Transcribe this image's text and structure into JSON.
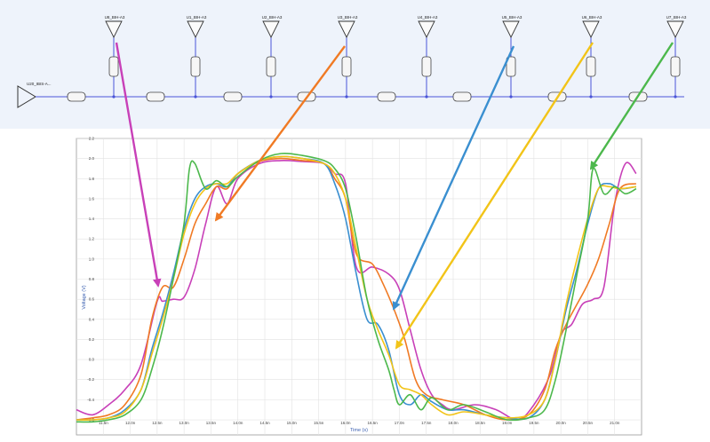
{
  "schematic": {
    "driver_label": "U20_IBIS-A...",
    "receivers": [
      {
        "label": "U8_BIH-A3"
      },
      {
        "label": "U1_BIH-A3"
      },
      {
        "label": "U2_BIH-A3"
      },
      {
        "label": "U3_BIH-A3"
      },
      {
        "label": "U4_BIH-A3"
      },
      {
        "label": "U5_BIH-A3"
      },
      {
        "label": "U6_BIH-A3"
      },
      {
        "label": "U7_BIH-A3"
      }
    ]
  },
  "colors": {
    "magenta": "#c840b8",
    "orange": "#f07a24",
    "blue": "#3a8fd0",
    "yellow": "#f2c418",
    "green": "#4cb84c",
    "schematic_bg": "#eef3fb",
    "wire": "#4a54d8"
  },
  "chart_data": {
    "type": "line",
    "title": "",
    "xlabel": "Time (s)",
    "ylabel": "Voltage (V)",
    "xlim": [
      11.0,
      21.5
    ],
    "ylim": [
      -0.75,
      2.2
    ],
    "grid": true,
    "x_ticks": [
      "11.5n",
      "12.0n",
      "12.5n",
      "13.0n",
      "13.5n",
      "14.0n",
      "14.5n",
      "15.0n",
      "15.5n",
      "16.0n",
      "16.5n",
      "17.0n",
      "17.5n",
      "18.0n",
      "18.5n",
      "19.0n",
      "19.5n",
      "20.0n",
      "20.5n",
      "21.0n"
    ],
    "y_ticks": [
      "-0.6",
      "-0.4",
      "-0.2",
      "0.0",
      "0.2",
      "0.4",
      "0.6",
      "0.8",
      "1.0",
      "1.2",
      "1.4",
      "1.6",
      "1.8",
      "2.0",
      "2.2"
    ],
    "series": [
      {
        "color": "magenta",
        "x": [
          11.0,
          11.3,
          11.6,
          11.9,
          12.2,
          12.5,
          12.6,
          12.8,
          13.0,
          13.2,
          13.4,
          13.6,
          13.8,
          14.0,
          14.4,
          14.8,
          15.2,
          15.6,
          15.8,
          16.0,
          16.2,
          16.5,
          16.8,
          17.0,
          17.2,
          17.4,
          17.6,
          17.8,
          18.0,
          18.4,
          18.8,
          19.2,
          19.5,
          19.8,
          20.0,
          20.2,
          20.4,
          20.6,
          20.8,
          21.0,
          21.2,
          21.4
        ],
        "y": [
          -0.5,
          -0.55,
          -0.45,
          -0.3,
          -0.05,
          0.58,
          0.58,
          0.6,
          0.62,
          0.9,
          1.35,
          1.72,
          1.55,
          1.8,
          1.95,
          1.98,
          1.97,
          1.95,
          1.85,
          1.75,
          0.92,
          0.92,
          0.85,
          0.7,
          0.3,
          -0.1,
          -0.35,
          -0.45,
          -0.5,
          -0.45,
          -0.5,
          -0.6,
          -0.45,
          -0.15,
          0.25,
          0.35,
          0.55,
          0.6,
          0.72,
          1.55,
          1.95,
          1.85
        ]
      },
      {
        "color": "orange",
        "x": [
          11.0,
          11.3,
          11.6,
          11.9,
          12.2,
          12.4,
          12.6,
          12.8,
          13.0,
          13.2,
          13.4,
          13.6,
          13.8,
          14.0,
          14.4,
          14.8,
          15.2,
          15.6,
          15.8,
          16.0,
          16.2,
          16.5,
          16.7,
          16.9,
          17.1,
          17.3,
          17.5,
          17.8,
          18.2,
          18.6,
          19.0,
          19.4,
          19.7,
          19.9,
          20.1,
          20.3,
          20.5,
          20.7,
          20.9,
          21.1,
          21.4
        ],
        "y": [
          -0.6,
          -0.58,
          -0.55,
          -0.45,
          -0.15,
          0.4,
          0.72,
          0.72,
          1.0,
          1.35,
          1.55,
          1.72,
          1.7,
          1.85,
          1.97,
          2.0,
          1.98,
          1.95,
          1.8,
          1.6,
          1.05,
          0.95,
          0.75,
          0.5,
          0.2,
          -0.2,
          -0.35,
          -0.4,
          -0.45,
          -0.55,
          -0.6,
          -0.55,
          -0.3,
          0.1,
          0.35,
          0.55,
          0.75,
          1.0,
          1.35,
          1.7,
          1.75
        ]
      },
      {
        "color": "blue",
        "x": [
          11.0,
          11.3,
          11.6,
          11.9,
          12.2,
          12.4,
          12.6,
          12.8,
          13.0,
          13.2,
          13.4,
          13.6,
          13.8,
          14.0,
          14.4,
          14.8,
          15.2,
          15.6,
          15.8,
          16.0,
          16.2,
          16.4,
          16.6,
          16.8,
          17.0,
          17.2,
          17.4,
          17.6,
          17.9,
          18.2,
          18.6,
          19.0,
          19.4,
          19.7,
          19.9,
          20.1,
          20.3,
          20.5,
          20.7,
          20.9,
          21.1,
          21.4
        ],
        "y": [
          -0.6,
          -0.6,
          -0.58,
          -0.5,
          -0.3,
          0.1,
          0.45,
          0.85,
          1.3,
          1.6,
          1.72,
          1.75,
          1.72,
          1.85,
          1.98,
          2.02,
          2.0,
          1.95,
          1.75,
          1.4,
          0.85,
          0.4,
          0.35,
          0.1,
          -0.35,
          -0.45,
          -0.35,
          -0.42,
          -0.5,
          -0.5,
          -0.55,
          -0.58,
          -0.58,
          -0.4,
          0.0,
          0.5,
          0.9,
          1.35,
          1.7,
          1.75,
          1.7,
          1.72
        ]
      },
      {
        "color": "yellow",
        "x": [
          11.0,
          11.3,
          11.6,
          11.9,
          12.2,
          12.4,
          12.6,
          12.8,
          13.0,
          13.2,
          13.4,
          13.6,
          13.8,
          14.0,
          14.4,
          14.8,
          15.2,
          15.6,
          15.8,
          16.0,
          16.2,
          16.4,
          16.6,
          16.8,
          17.0,
          17.2,
          17.4,
          17.6,
          17.9,
          18.2,
          18.6,
          19.0,
          19.4,
          19.7,
          19.9,
          20.1,
          20.3,
          20.5,
          20.7,
          20.9,
          21.1,
          21.4
        ],
        "y": [
          -0.6,
          -0.6,
          -0.58,
          -0.52,
          -0.3,
          0.05,
          0.4,
          0.8,
          1.25,
          1.55,
          1.7,
          1.75,
          1.75,
          1.85,
          1.98,
          2.02,
          2.0,
          1.95,
          1.85,
          1.6,
          1.1,
          0.6,
          0.3,
          0.05,
          -0.25,
          -0.3,
          -0.35,
          -0.45,
          -0.55,
          -0.52,
          -0.55,
          -0.58,
          -0.55,
          -0.4,
          0.0,
          0.55,
          1.0,
          1.4,
          1.7,
          1.72,
          1.7,
          1.72
        ]
      },
      {
        "color": "green",
        "x": [
          11.0,
          11.3,
          11.6,
          11.9,
          12.2,
          12.4,
          12.6,
          12.8,
          13.0,
          13.1,
          13.2,
          13.4,
          13.6,
          13.8,
          14.0,
          14.4,
          14.8,
          15.2,
          15.6,
          15.8,
          16.0,
          16.2,
          16.4,
          16.6,
          16.8,
          16.9,
          17.0,
          17.2,
          17.4,
          17.6,
          17.9,
          18.2,
          18.6,
          19.0,
          19.4,
          19.7,
          19.9,
          20.1,
          20.3,
          20.5,
          20.6,
          20.8,
          21.0,
          21.2,
          21.4
        ],
        "y": [
          -0.62,
          -0.62,
          -0.6,
          -0.55,
          -0.4,
          -0.1,
          0.3,
          0.8,
          1.35,
          1.9,
          1.95,
          1.7,
          1.78,
          1.72,
          1.82,
          1.98,
          2.05,
          2.03,
          1.98,
          1.9,
          1.7,
          1.2,
          0.6,
          0.2,
          -0.1,
          -0.3,
          -0.45,
          -0.35,
          -0.5,
          -0.38,
          -0.5,
          -0.45,
          -0.52,
          -0.6,
          -0.58,
          -0.5,
          -0.2,
          0.3,
          0.85,
          1.4,
          1.9,
          1.65,
          1.72,
          1.65,
          1.7
        ]
      }
    ]
  }
}
